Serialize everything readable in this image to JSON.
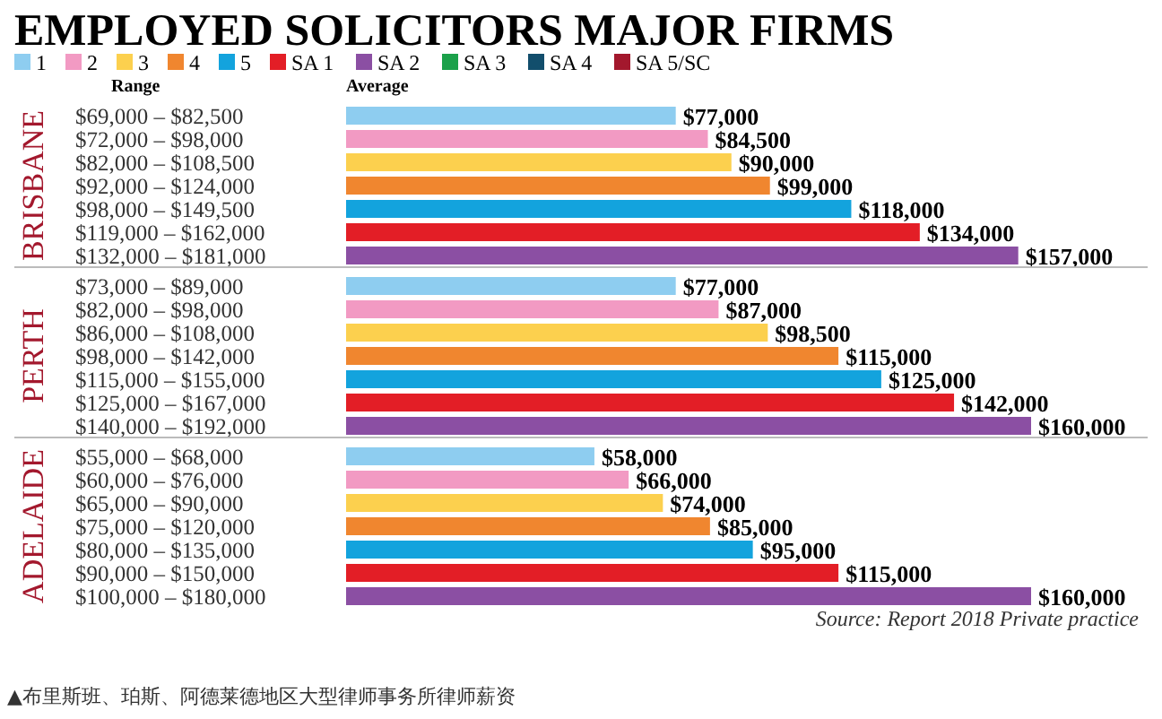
{
  "chart_data": [
    {
      "type": "bar",
      "orientation": "horizontal",
      "stacked": true,
      "title": "EMPLOYED SOLICITORS MAJOR FIRMS",
      "subtitle": "BRISBANE",
      "ylabel": "Range",
      "xlabel": "Average",
      "legend": "top",
      "tick_labels": "y",
      "categories": [
        "$69,000 – $82,500",
        "$72,000 – $98,000",
        "$82,000 – $108,500",
        "$92,000 – $124,000",
        "$98,000 – $149,500",
        "$119,000 – $162,000",
        "$132,000 – $181,000"
      ],
      "series": [
        {
          "name": "1",
          "color": "#8ecdf0",
          "values": [
            77000,
            null,
            null,
            null,
            null,
            null,
            null
          ],
          "value_labels": [
            "$77,000",
            null,
            null,
            null,
            null,
            null,
            null
          ]
        },
        {
          "name": "2",
          "color": "#f29ac3",
          "values": [
            null,
            84500,
            null,
            null,
            null,
            null,
            null
          ],
          "value_labels": [
            null,
            "$84,500",
            null,
            null,
            null,
            null,
            null
          ]
        },
        {
          "name": "3",
          "color": "#fcd04e",
          "values": [
            null,
            null,
            90000,
            null,
            null,
            null,
            null
          ],
          "value_labels": [
            null,
            null,
            "$90,000",
            null,
            null,
            null,
            null
          ]
        },
        {
          "name": "4",
          "color": "#f0862f",
          "values": [
            null,
            null,
            null,
            99000,
            null,
            null,
            null
          ],
          "value_labels": [
            null,
            null,
            null,
            "$99,000",
            null,
            null,
            null
          ]
        },
        {
          "name": "5",
          "color": "#13a3dd",
          "values": [
            null,
            null,
            null,
            null,
            118000,
            null,
            null
          ],
          "value_labels": [
            null,
            null,
            null,
            null,
            "$118,000",
            null,
            null
          ]
        },
        {
          "name": "SA 1",
          "color": "#e31e26",
          "values": [
            null,
            null,
            null,
            null,
            null,
            134000,
            null
          ],
          "value_labels": [
            null,
            null,
            null,
            null,
            null,
            "$134,000",
            null
          ]
        },
        {
          "name": "SA 2",
          "color": "#8b4fa3",
          "values": [
            null,
            null,
            null,
            null,
            null,
            null,
            157000
          ],
          "value_labels": [
            null,
            null,
            null,
            null,
            null,
            null,
            "$157,000"
          ]
        },
        {
          "name": "SA 3",
          "color": "#1ba14a",
          "values": [
            null,
            null,
            null,
            null,
            null,
            null,
            null
          ]
        },
        {
          "name": "SA 4",
          "color": "#124e6c",
          "values": [
            null,
            null,
            null,
            null,
            null,
            null,
            null
          ]
        },
        {
          "name": "SA 5/SC",
          "color": "#a3182d",
          "values": [
            null,
            null,
            null,
            null,
            null,
            null,
            null
          ]
        }
      ]
    },
    {
      "type": "bar",
      "orientation": "horizontal",
      "stacked": true,
      "subtitle": "PERTH",
      "tick_labels": "y",
      "categories": [
        "$73,000 – $89,000",
        "$82,000 – $98,000",
        "$86,000 – $108,000",
        "$98,000 – $142,000",
        "$115,000 – $155,000",
        "$125,000 – $167,000",
        "$140,000 – $192,000"
      ],
      "series": [
        {
          "color": "#8ecdf0",
          "values": [
            77000,
            null,
            null,
            null,
            null,
            null,
            null
          ],
          "value_labels": [
            "$77,000",
            null,
            null,
            null,
            null,
            null,
            null
          ]
        },
        {
          "color": "#f29ac3",
          "values": [
            null,
            87000,
            null,
            null,
            null,
            null,
            null
          ],
          "value_labels": [
            null,
            "$87,000",
            null,
            null,
            null,
            null,
            null
          ]
        },
        {
          "color": "#fcd04e",
          "values": [
            null,
            null,
            98500,
            null,
            null,
            null,
            null
          ],
          "value_labels": [
            null,
            null,
            "$98,500",
            null,
            null,
            null,
            null
          ]
        },
        {
          "color": "#f0862f",
          "values": [
            null,
            null,
            null,
            115000,
            null,
            null,
            null
          ],
          "value_labels": [
            null,
            null,
            null,
            "$115,000",
            null,
            null,
            null
          ]
        },
        {
          "color": "#13a3dd",
          "values": [
            null,
            null,
            null,
            null,
            125000,
            null,
            null
          ],
          "value_labels": [
            null,
            null,
            null,
            null,
            "$125,000",
            null,
            null
          ]
        },
        {
          "color": "#e31e26",
          "values": [
            null,
            null,
            null,
            null,
            null,
            142000,
            null
          ],
          "value_labels": [
            null,
            null,
            null,
            null,
            null,
            "$142,000",
            null
          ]
        },
        {
          "color": "#8b4fa3",
          "values": [
            null,
            null,
            null,
            null,
            null,
            null,
            160000
          ],
          "value_labels": [
            null,
            null,
            null,
            null,
            null,
            null,
            "$160,000"
          ]
        }
      ]
    },
    {
      "type": "bar",
      "orientation": "horizontal",
      "stacked": true,
      "subtitle": "ADELAIDE",
      "tick_labels": "y",
      "categories": [
        "$55,000 – $68,000",
        "$60,000 – $76,000",
        "$65,000 – $90,000",
        "$75,000 – $120,000",
        "$80,000 – $135,000",
        "$90,000 – $150,000",
        "$100,000 – $180,000"
      ],
      "series": [
        {
          "color": "#8ecdf0",
          "values": [
            58000,
            null,
            null,
            null,
            null,
            null,
            null
          ],
          "value_labels": [
            "$58,000",
            null,
            null,
            null,
            null,
            null,
            null
          ]
        },
        {
          "color": "#f29ac3",
          "values": [
            null,
            66000,
            null,
            null,
            null,
            null,
            null
          ],
          "value_labels": [
            null,
            "$66,000",
            null,
            null,
            null,
            null,
            null
          ]
        },
        {
          "color": "#fcd04e",
          "values": [
            null,
            null,
            74000,
            null,
            null,
            null,
            null
          ],
          "value_labels": [
            null,
            null,
            "$74,000",
            null,
            null,
            null,
            null
          ]
        },
        {
          "color": "#f0862f",
          "values": [
            null,
            null,
            null,
            85000,
            null,
            null,
            null
          ],
          "value_labels": [
            null,
            null,
            null,
            "$85,000",
            null,
            null,
            null
          ]
        },
        {
          "color": "#13a3dd",
          "values": [
            null,
            null,
            null,
            null,
            95000,
            null,
            null
          ],
          "value_labels": [
            null,
            null,
            null,
            null,
            "$95,000",
            null,
            null
          ]
        },
        {
          "color": "#e31e26",
          "values": [
            null,
            null,
            null,
            null,
            null,
            115000,
            null
          ],
          "value_labels": [
            null,
            null,
            null,
            null,
            null,
            "$115,000",
            null
          ]
        },
        {
          "color": "#8b4fa3",
          "values": [
            null,
            null,
            null,
            null,
            null,
            null,
            160000
          ],
          "value_labels": [
            null,
            null,
            null,
            null,
            null,
            null,
            "$160,000"
          ]
        }
      ],
      "annotations": [
        "Source: Report 2018 Private practice",
        "▲布里斯班、珀斯、阿德莱德地区大型律师事务所律师薪资"
      ]
    }
  ]
}
